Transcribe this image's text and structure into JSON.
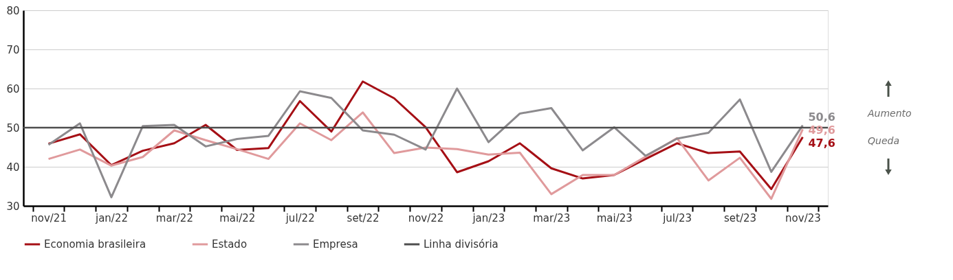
{
  "chart_data": {
    "type": "line",
    "categories": [
      "nov/21",
      null,
      "jan/22",
      null,
      "mar/22",
      null,
      "mai/22",
      null,
      "jul/22",
      null,
      "set/22",
      null,
      "nov/22",
      null,
      "jan/23",
      null,
      "mar/23",
      null,
      "mai/23",
      null,
      "jul/23",
      null,
      "set/23",
      null,
      "nov/23"
    ],
    "series": [
      {
        "name": "Economia brasileira",
        "color": "#a50f15",
        "values": [
          45.9,
          48.3,
          40.4,
          44.1,
          46.0,
          50.7,
          44.3,
          44.8,
          56.8,
          49.0,
          61.8,
          57.5,
          50.1,
          38.6,
          41.4,
          46.0,
          39.6,
          37.0,
          37.9,
          42.0,
          46.0,
          43.5,
          43.9,
          34.3,
          47.6
        ],
        "value_labels": [
          null,
          null,
          null,
          null,
          null,
          null,
          null,
          null,
          null,
          null,
          null,
          null,
          null,
          null,
          null,
          null,
          null,
          null,
          null,
          null,
          null,
          null,
          null,
          null,
          "47,6"
        ]
      },
      {
        "name": "Estado",
        "color": "#e09a9c",
        "values": [
          42.0,
          44.4,
          40.3,
          42.5,
          49.3,
          46.8,
          44.5,
          42.0,
          51.1,
          46.8,
          53.9,
          43.5,
          44.9,
          44.5,
          43.1,
          43.6,
          33.0,
          37.9,
          37.9,
          42.6,
          47.3,
          36.5,
          42.3,
          31.8,
          49.6
        ],
        "value_labels": [
          null,
          null,
          null,
          null,
          null,
          null,
          null,
          null,
          null,
          null,
          null,
          null,
          null,
          null,
          null,
          null,
          null,
          null,
          null,
          null,
          null,
          null,
          null,
          null,
          "49,6"
        ]
      },
      {
        "name": "Empresa",
        "color": "#8c8a8d",
        "values": [
          45.6,
          51.1,
          32.2,
          50.4,
          50.7,
          45.2,
          47.1,
          47.9,
          59.3,
          57.6,
          49.3,
          48.2,
          44.4,
          60.0,
          46.3,
          53.6,
          55.0,
          44.2,
          50.1,
          42.8,
          47.2,
          48.7,
          57.2,
          38.7,
          50.6
        ],
        "value_labels": [
          null,
          null,
          null,
          null,
          null,
          null,
          null,
          null,
          null,
          null,
          null,
          null,
          null,
          null,
          null,
          null,
          null,
          null,
          null,
          null,
          null,
          null,
          null,
          null,
          "50,6"
        ]
      }
    ],
    "ref_lines": [
      {
        "axis": "y",
        "value": 50,
        "label": "Linha divisória",
        "color": "#4d4d4d"
      }
    ],
    "annotations": [
      "Aumento",
      "Queda"
    ],
    "ylim": [
      30,
      80
    ],
    "yticks": [
      30,
      40,
      50,
      60,
      70,
      80
    ],
    "grid": "y",
    "legend": "bottom",
    "marker": "none",
    "line_style": "solid"
  }
}
